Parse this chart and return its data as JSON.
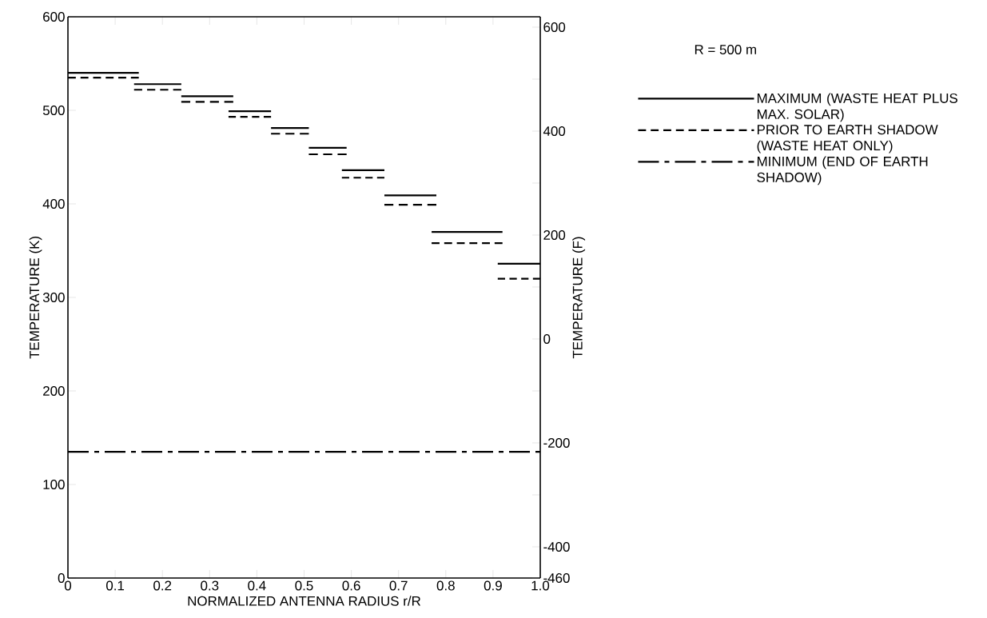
{
  "chart_data": {
    "type": "line",
    "xlabel": "NORMALIZED ANTENNA RADIUS r/R",
    "ylabel": "TEMPERATURE (K)",
    "y2label": "TEMPERATURE (F)",
    "annotations": [
      "R = 500 m"
    ],
    "xlim": [
      0,
      1
    ],
    "xticks": [
      0,
      0.1,
      0.2,
      0.3,
      0.4,
      0.5,
      0.6,
      0.7,
      0.8,
      0.9,
      {
        "value": 1,
        "label": "1.0"
      }
    ],
    "ylim": [
      0,
      600
    ],
    "yticks": [
      0,
      100,
      200,
      300,
      400,
      500,
      600
    ],
    "y2lim": [
      -460,
      620
    ],
    "y2ticks": [
      -460,
      -400,
      {
        "value": -300,
        "label": null
      },
      -200,
      {
        "value": -100,
        "label": null
      },
      0,
      {
        "value": 100,
        "label": null
      },
      200,
      {
        "value": 300,
        "label": null
      },
      400,
      {
        "value": 500,
        "label": null
      },
      600
    ],
    "legend": "right",
    "marker": "none",
    "series": [
      {
        "name": "MAXIMUM (WASTE HEAT PLUS MAX. SOLAR)",
        "color": "#000000",
        "line_style": "solid",
        "x": [
          0,
          0.15
        ],
        "values": [
          540,
          540
        ]
      },
      {
        "color": "#000000",
        "line_style": "solid",
        "x": [
          0.14,
          0.24
        ],
        "values": [
          528,
          528
        ]
      },
      {
        "color": "#000000",
        "line_style": "solid",
        "x": [
          0.24,
          0.35
        ],
        "values": [
          515,
          515
        ]
      },
      {
        "color": "#000000",
        "line_style": "solid",
        "x": [
          0.34,
          0.43
        ],
        "values": [
          499,
          499
        ]
      },
      {
        "color": "#000000",
        "line_style": "solid",
        "x": [
          0.43,
          0.51
        ],
        "values": [
          481,
          481
        ]
      },
      {
        "color": "#000000",
        "line_style": "solid",
        "x": [
          0.51,
          0.59
        ],
        "values": [
          460,
          460
        ]
      },
      {
        "color": "#000000",
        "line_style": "solid",
        "x": [
          0.58,
          0.67
        ],
        "values": [
          436,
          436
        ]
      },
      {
        "color": "#000000",
        "line_style": "solid",
        "x": [
          0.67,
          0.78
        ],
        "values": [
          409,
          409
        ]
      },
      {
        "color": "#000000",
        "line_style": "solid",
        "x": [
          0.77,
          0.92
        ],
        "values": [
          370,
          370
        ]
      },
      {
        "color": "#000000",
        "line_style": "solid",
        "x": [
          0.91,
          1.0
        ],
        "values": [
          336,
          336
        ]
      },
      {
        "name": "PRIOR TO EARTH SHADOW (WASTE HEAT ONLY)",
        "color": "#000000",
        "line_style": "dashed",
        "x": [
          0,
          0.15
        ],
        "values": [
          535,
          535
        ]
      },
      {
        "color": "#000000",
        "line_style": "dashed",
        "x": [
          0.14,
          0.24
        ],
        "values": [
          522,
          522
        ]
      },
      {
        "color": "#000000",
        "line_style": "dashed",
        "x": [
          0.24,
          0.35
        ],
        "values": [
          509,
          509
        ]
      },
      {
        "color": "#000000",
        "line_style": "dashed",
        "x": [
          0.34,
          0.43
        ],
        "values": [
          493,
          493
        ]
      },
      {
        "color": "#000000",
        "line_style": "dashed",
        "x": [
          0.43,
          0.51
        ],
        "values": [
          475,
          475
        ]
      },
      {
        "color": "#000000",
        "line_style": "dashed",
        "x": [
          0.51,
          0.59
        ],
        "values": [
          453,
          453
        ]
      },
      {
        "color": "#000000",
        "line_style": "dashed",
        "x": [
          0.58,
          0.67
        ],
        "values": [
          428,
          428
        ]
      },
      {
        "color": "#000000",
        "line_style": "dashed",
        "x": [
          0.67,
          0.78
        ],
        "values": [
          399,
          399
        ]
      },
      {
        "color": "#000000",
        "line_style": "dashed",
        "x": [
          0.77,
          0.92
        ],
        "values": [
          358,
          358
        ]
      },
      {
        "color": "#000000",
        "line_style": "dashed",
        "x": [
          0.91,
          1.0
        ],
        "values": [
          320,
          320
        ]
      },
      {
        "name": "MINIMUM (END OF EARTH SHADOW)",
        "color": "#000000",
        "line_style": "dashdot",
        "x": [
          0,
          1.0
        ],
        "values": [
          135,
          135
        ]
      }
    ]
  }
}
